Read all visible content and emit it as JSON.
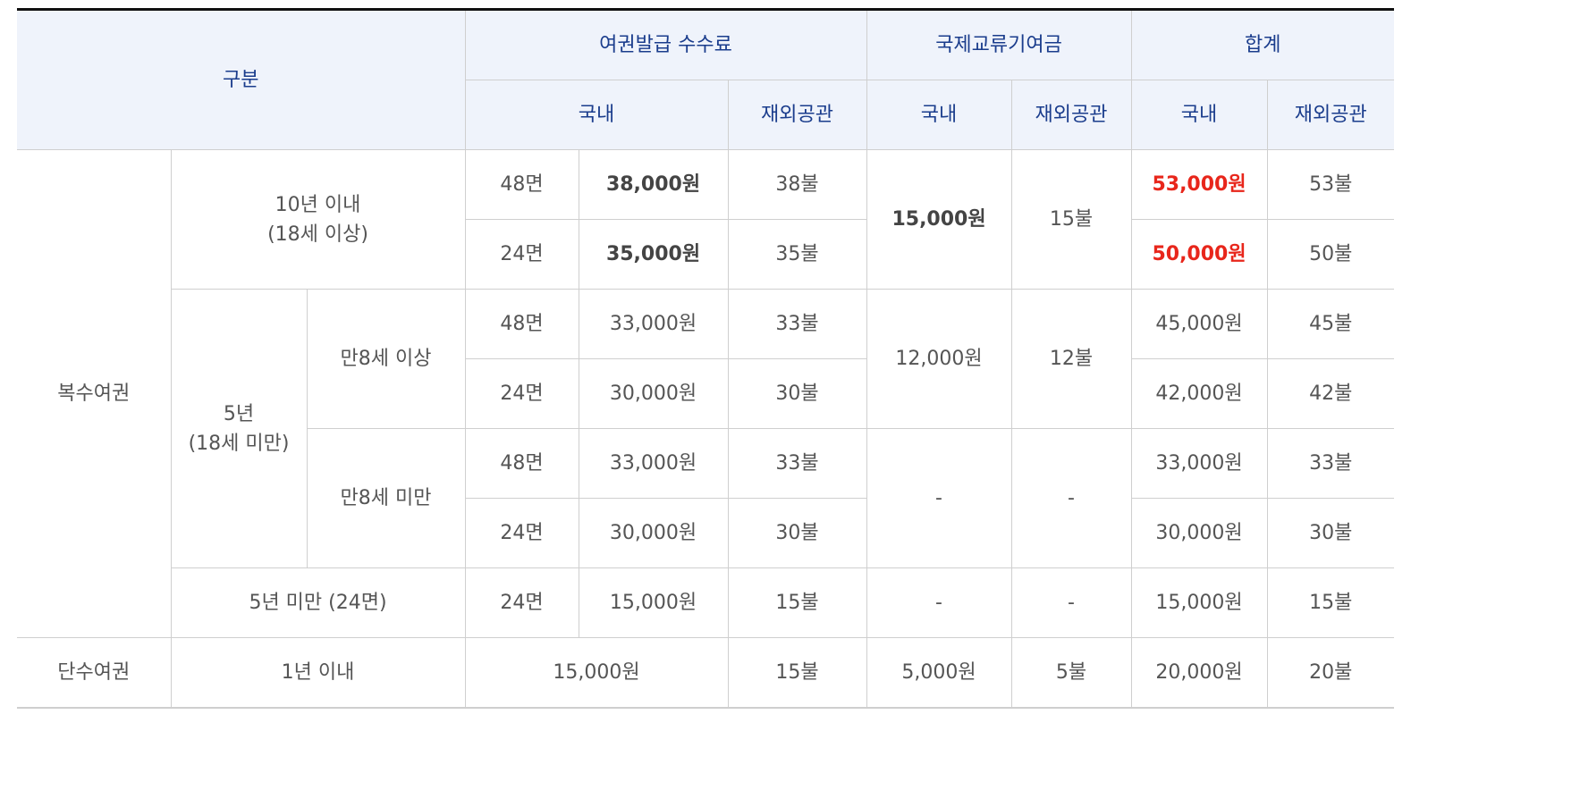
{
  "header": {
    "category": "구분",
    "fee": "여권발급 수수료",
    "fund": "국제교류기여금",
    "total": "합계",
    "domestic": "국내",
    "overseas": "재외공관"
  },
  "multiple": {
    "label": "복수여권",
    "ten_year": {
      "line1": "10년 이내",
      "line2": "(18세 이상)",
      "rows": [
        {
          "pages": "48면",
          "fee_domestic": "38,000원",
          "fee_overseas": "38불",
          "total_domestic": "53,000원",
          "total_overseas": "53불"
        },
        {
          "pages": "24면",
          "fee_domestic": "35,000원",
          "fee_overseas": "35불",
          "total_domestic": "50,000원",
          "total_overseas": "50불"
        }
      ],
      "fund_domestic": "15,000원",
      "fund_overseas": "15불"
    },
    "five_year": {
      "line1": "5년",
      "line2": "(18세 미만)",
      "over8": {
        "label": "만8세 이상",
        "fund_domestic": "12,000원",
        "fund_overseas": "12불",
        "rows": [
          {
            "pages": "48면",
            "fee_domestic": "33,000원",
            "fee_overseas": "33불",
            "total_domestic": "45,000원",
            "total_overseas": "45불"
          },
          {
            "pages": "24면",
            "fee_domestic": "30,000원",
            "fee_overseas": "30불",
            "total_domestic": "42,000원",
            "total_overseas": "42불"
          }
        ]
      },
      "under8": {
        "label": "만8세 미만",
        "fund_domestic": "-",
        "fund_overseas": "-",
        "rows": [
          {
            "pages": "48면",
            "fee_domestic": "33,000원",
            "fee_overseas": "33불",
            "total_domestic": "33,000원",
            "total_overseas": "33불"
          },
          {
            "pages": "24면",
            "fee_domestic": "30,000원",
            "fee_overseas": "30불",
            "total_domestic": "30,000원",
            "total_overseas": "30불"
          }
        ]
      }
    },
    "under_five": {
      "label": "5년 미만 (24면)",
      "pages": "24면",
      "fee_domestic": "15,000원",
      "fee_overseas": "15불",
      "fund_domestic": "-",
      "fund_overseas": "-",
      "total_domestic": "15,000원",
      "total_overseas": "15불"
    }
  },
  "single": {
    "label": "단수여권",
    "period": "1년 이내",
    "fee_domestic": "15,000원",
    "fee_overseas": "15불",
    "fund_domestic": "5,000원",
    "fund_overseas": "5불",
    "total_domestic": "20,000원",
    "total_overseas": "20불"
  },
  "colors": {
    "header_bg": "#eff3fb",
    "header_text": "#1a3c8c",
    "highlight": "#e8261b"
  }
}
